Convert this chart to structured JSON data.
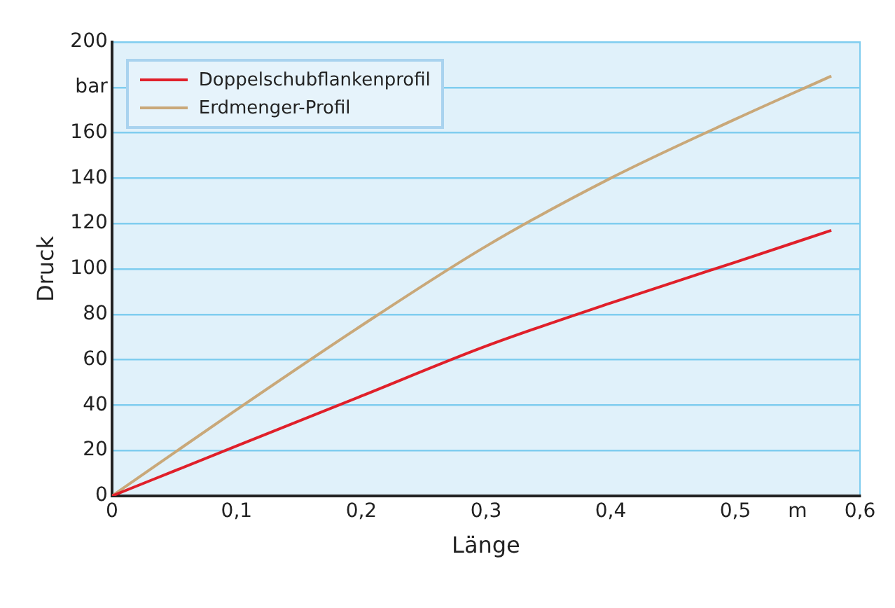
{
  "chart_data": {
    "type": "line",
    "xlabel": "Länge",
    "ylabel": "Druck",
    "xlim": [
      0,
      0.6
    ],
    "xticks": [
      {
        "value": 0,
        "label": "0"
      },
      {
        "value": 0.1,
        "label": "0,1"
      },
      {
        "value": 0.2,
        "label": "0,2"
      },
      {
        "value": 0.3,
        "label": "0,3"
      },
      {
        "value": 0.4,
        "label": "0,4"
      },
      {
        "value": 0.5,
        "label": "0,5"
      },
      {
        "value": 0.55,
        "label": "m"
      },
      {
        "value": 0.6,
        "label": "0,6"
      }
    ],
    "ylim": [
      0,
      200
    ],
    "yticks": [
      0,
      20,
      40,
      60,
      80,
      100,
      120,
      140,
      160,
      {
        "value": 180,
        "label": "bar"
      },
      200
    ],
    "grid": "y",
    "legend": "top left",
    "marker": "none",
    "line_style": "solid",
    "x": [
      0,
      0.1,
      0.2,
      0.3,
      0.4,
      0.5,
      0.577
    ],
    "series": [
      {
        "name": "Doppelschubflankenprofil",
        "color": "#e0202a",
        "values": [
          0,
          22,
          44,
          66,
          85,
          103,
          117
        ]
      },
      {
        "name": "Erdmenger-Profil",
        "color": "#c9a879",
        "values": [
          0,
          38,
          75,
          110,
          140,
          166,
          185
        ]
      }
    ]
  }
}
